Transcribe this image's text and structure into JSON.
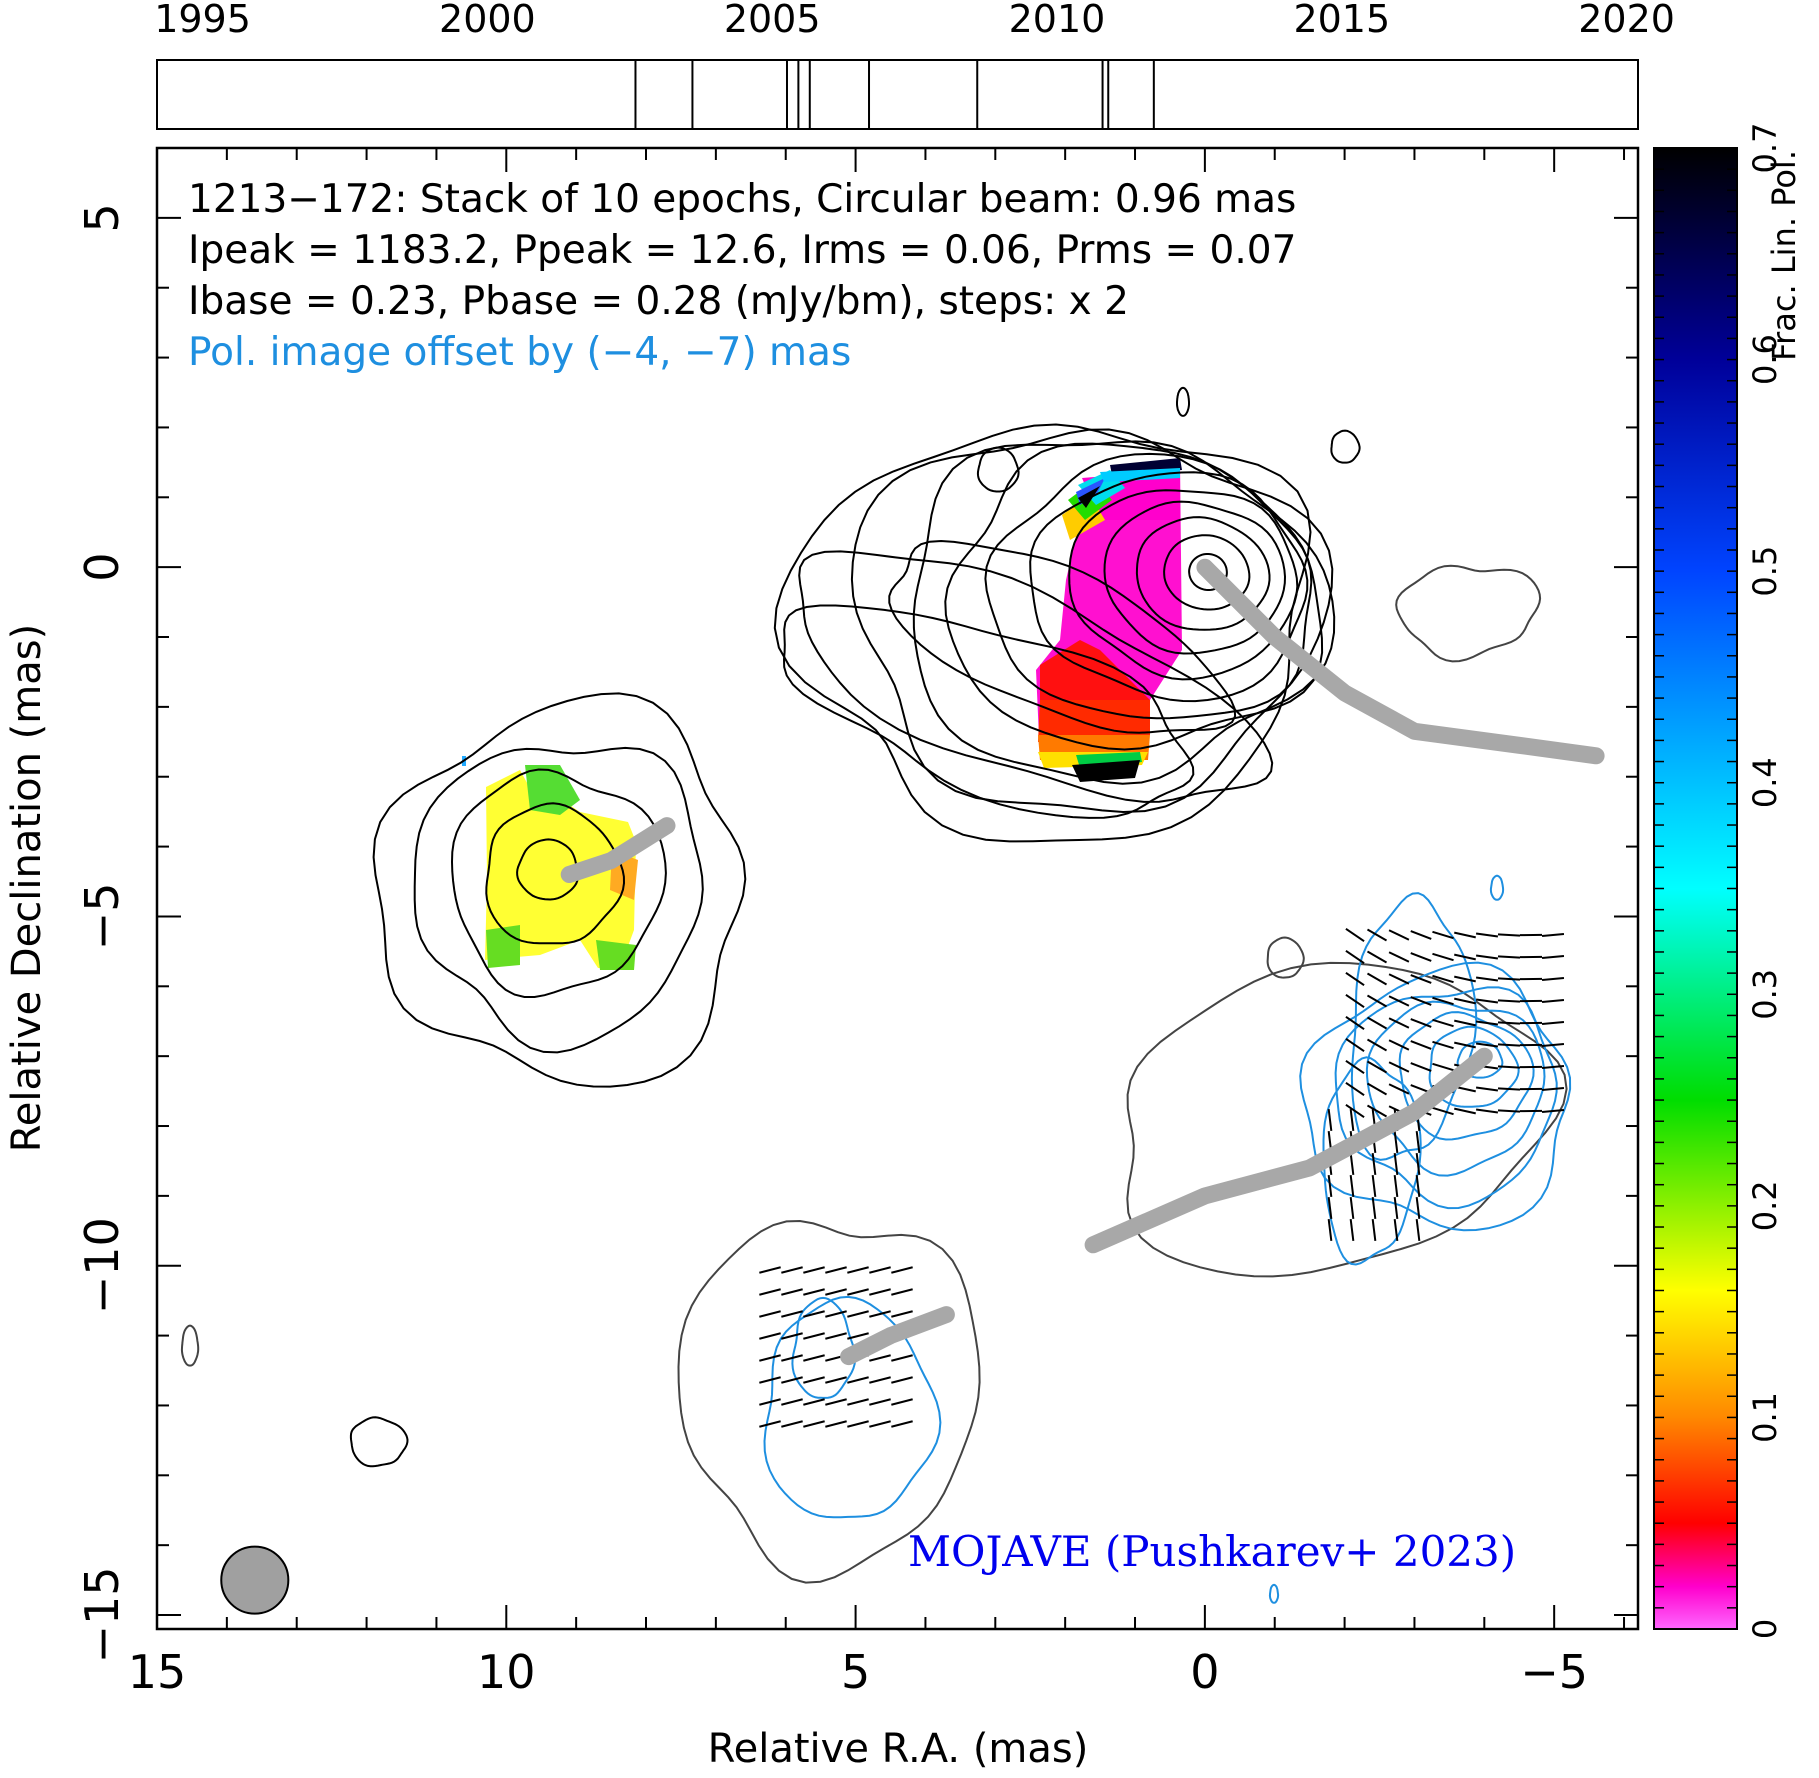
{
  "chart_data": [
    {
      "type": "timeline",
      "x_ticks": [
        "1995",
        "2000",
        "2005",
        "2010",
        "2015",
        "2020"
      ],
      "x_tick_values": [
        1995,
        2000,
        2005,
        2010,
        2015,
        2020
      ],
      "xlim": [
        1994.2,
        2020.2
      ],
      "epochs": [
        2002.6,
        2003.6,
        2005.26,
        2005.46,
        2005.66,
        2006.7,
        2008.6,
        2010.8,
        2010.9,
        2011.7
      ]
    },
    {
      "type": "image",
      "title_lines": [
        "1213−172: Stack of 10 epochs, Circular beam: 0.96 mas",
        "Ipeak = 1183.2, Ppeak = 12.6, Irms = 0.06, Prms = 0.07",
        "Ibase = 0.23, Pbase = 0.28 (mJy/bm), steps: x 2"
      ],
      "pol_offset_note": "Pol. image offset by (−4, −7) mas",
      "credit": "MOJAVE (Pushkarev+ 2023)",
      "xlabel": "Relative R.A. (mas)",
      "ylabel": "Relative Declination (mas)",
      "xlim": [
        15,
        -6.2
      ],
      "ylim": [
        -15.2,
        6
      ],
      "x_ticks": [
        "15",
        "10",
        "5",
        "0",
        "−5"
      ],
      "x_tick_values": [
        15,
        10,
        5,
        0,
        -5
      ],
      "y_ticks": [
        "−15",
        "−10",
        "−5",
        "0",
        "5"
      ],
      "y_tick_values": [
        -15,
        -10,
        -5,
        0,
        5
      ],
      "beam_diameter_mas": 0.96,
      "beam_center": [
        13.6,
        -14.5
      ],
      "ridgelines": [
        [
          [
            0,
            0
          ],
          [
            -1.0,
            -1.0
          ],
          [
            -2.0,
            -1.8
          ],
          [
            -3.0,
            -2.35
          ],
          [
            -4.5,
            -2.55
          ],
          [
            -5.6,
            -2.7
          ]
        ],
        [
          [
            9.1,
            -4.4
          ],
          [
            8.5,
            -4.2
          ],
          [
            7.7,
            -3.7
          ]
        ],
        [
          [
            -4.0,
            -7.0
          ],
          [
            -3.0,
            -7.8
          ],
          [
            -1.5,
            -8.6
          ],
          [
            0.0,
            -9.0
          ],
          [
            1.6,
            -9.7
          ]
        ],
        [
          [
            5.1,
            -11.3
          ],
          [
            4.5,
            -11.0
          ],
          [
            3.7,
            -10.7
          ]
        ]
      ],
      "colorbar": {
        "label": "Frac. Lin. Pol.",
        "range": [
          0,
          0.7
        ],
        "ticks": [
          "0",
          "0.1",
          "0.2",
          "0.3",
          "0.4",
          "0.5",
          "0.6",
          "0.7"
        ],
        "tick_values": [
          0,
          0.1,
          0.2,
          0.3,
          0.4,
          0.5,
          0.6,
          0.7
        ],
        "stops": [
          {
            "v": 0.0,
            "c": "#ff66ff"
          },
          {
            "v": 0.02,
            "c": "#ff00cc"
          },
          {
            "v": 0.05,
            "c": "#ff0000"
          },
          {
            "v": 0.1,
            "c": "#ff8800"
          },
          {
            "v": 0.16,
            "c": "#ffff00"
          },
          {
            "v": 0.25,
            "c": "#00dd00"
          },
          {
            "v": 0.35,
            "c": "#00ffff"
          },
          {
            "v": 0.5,
            "c": "#0044ff"
          },
          {
            "v": 0.6,
            "c": "#000099"
          },
          {
            "v": 0.7,
            "c": "#000000"
          }
        ]
      },
      "colors": {
        "stokes_i_contour": "#000000",
        "pol_i_contour": "#444444",
        "pol_contour": "#1e8fe0",
        "ridgeline": "#a8a8a8",
        "note_text": "#1e8fe0",
        "credit_text": "#0000ee",
        "beam": "#a0a0a0"
      }
    }
  ]
}
